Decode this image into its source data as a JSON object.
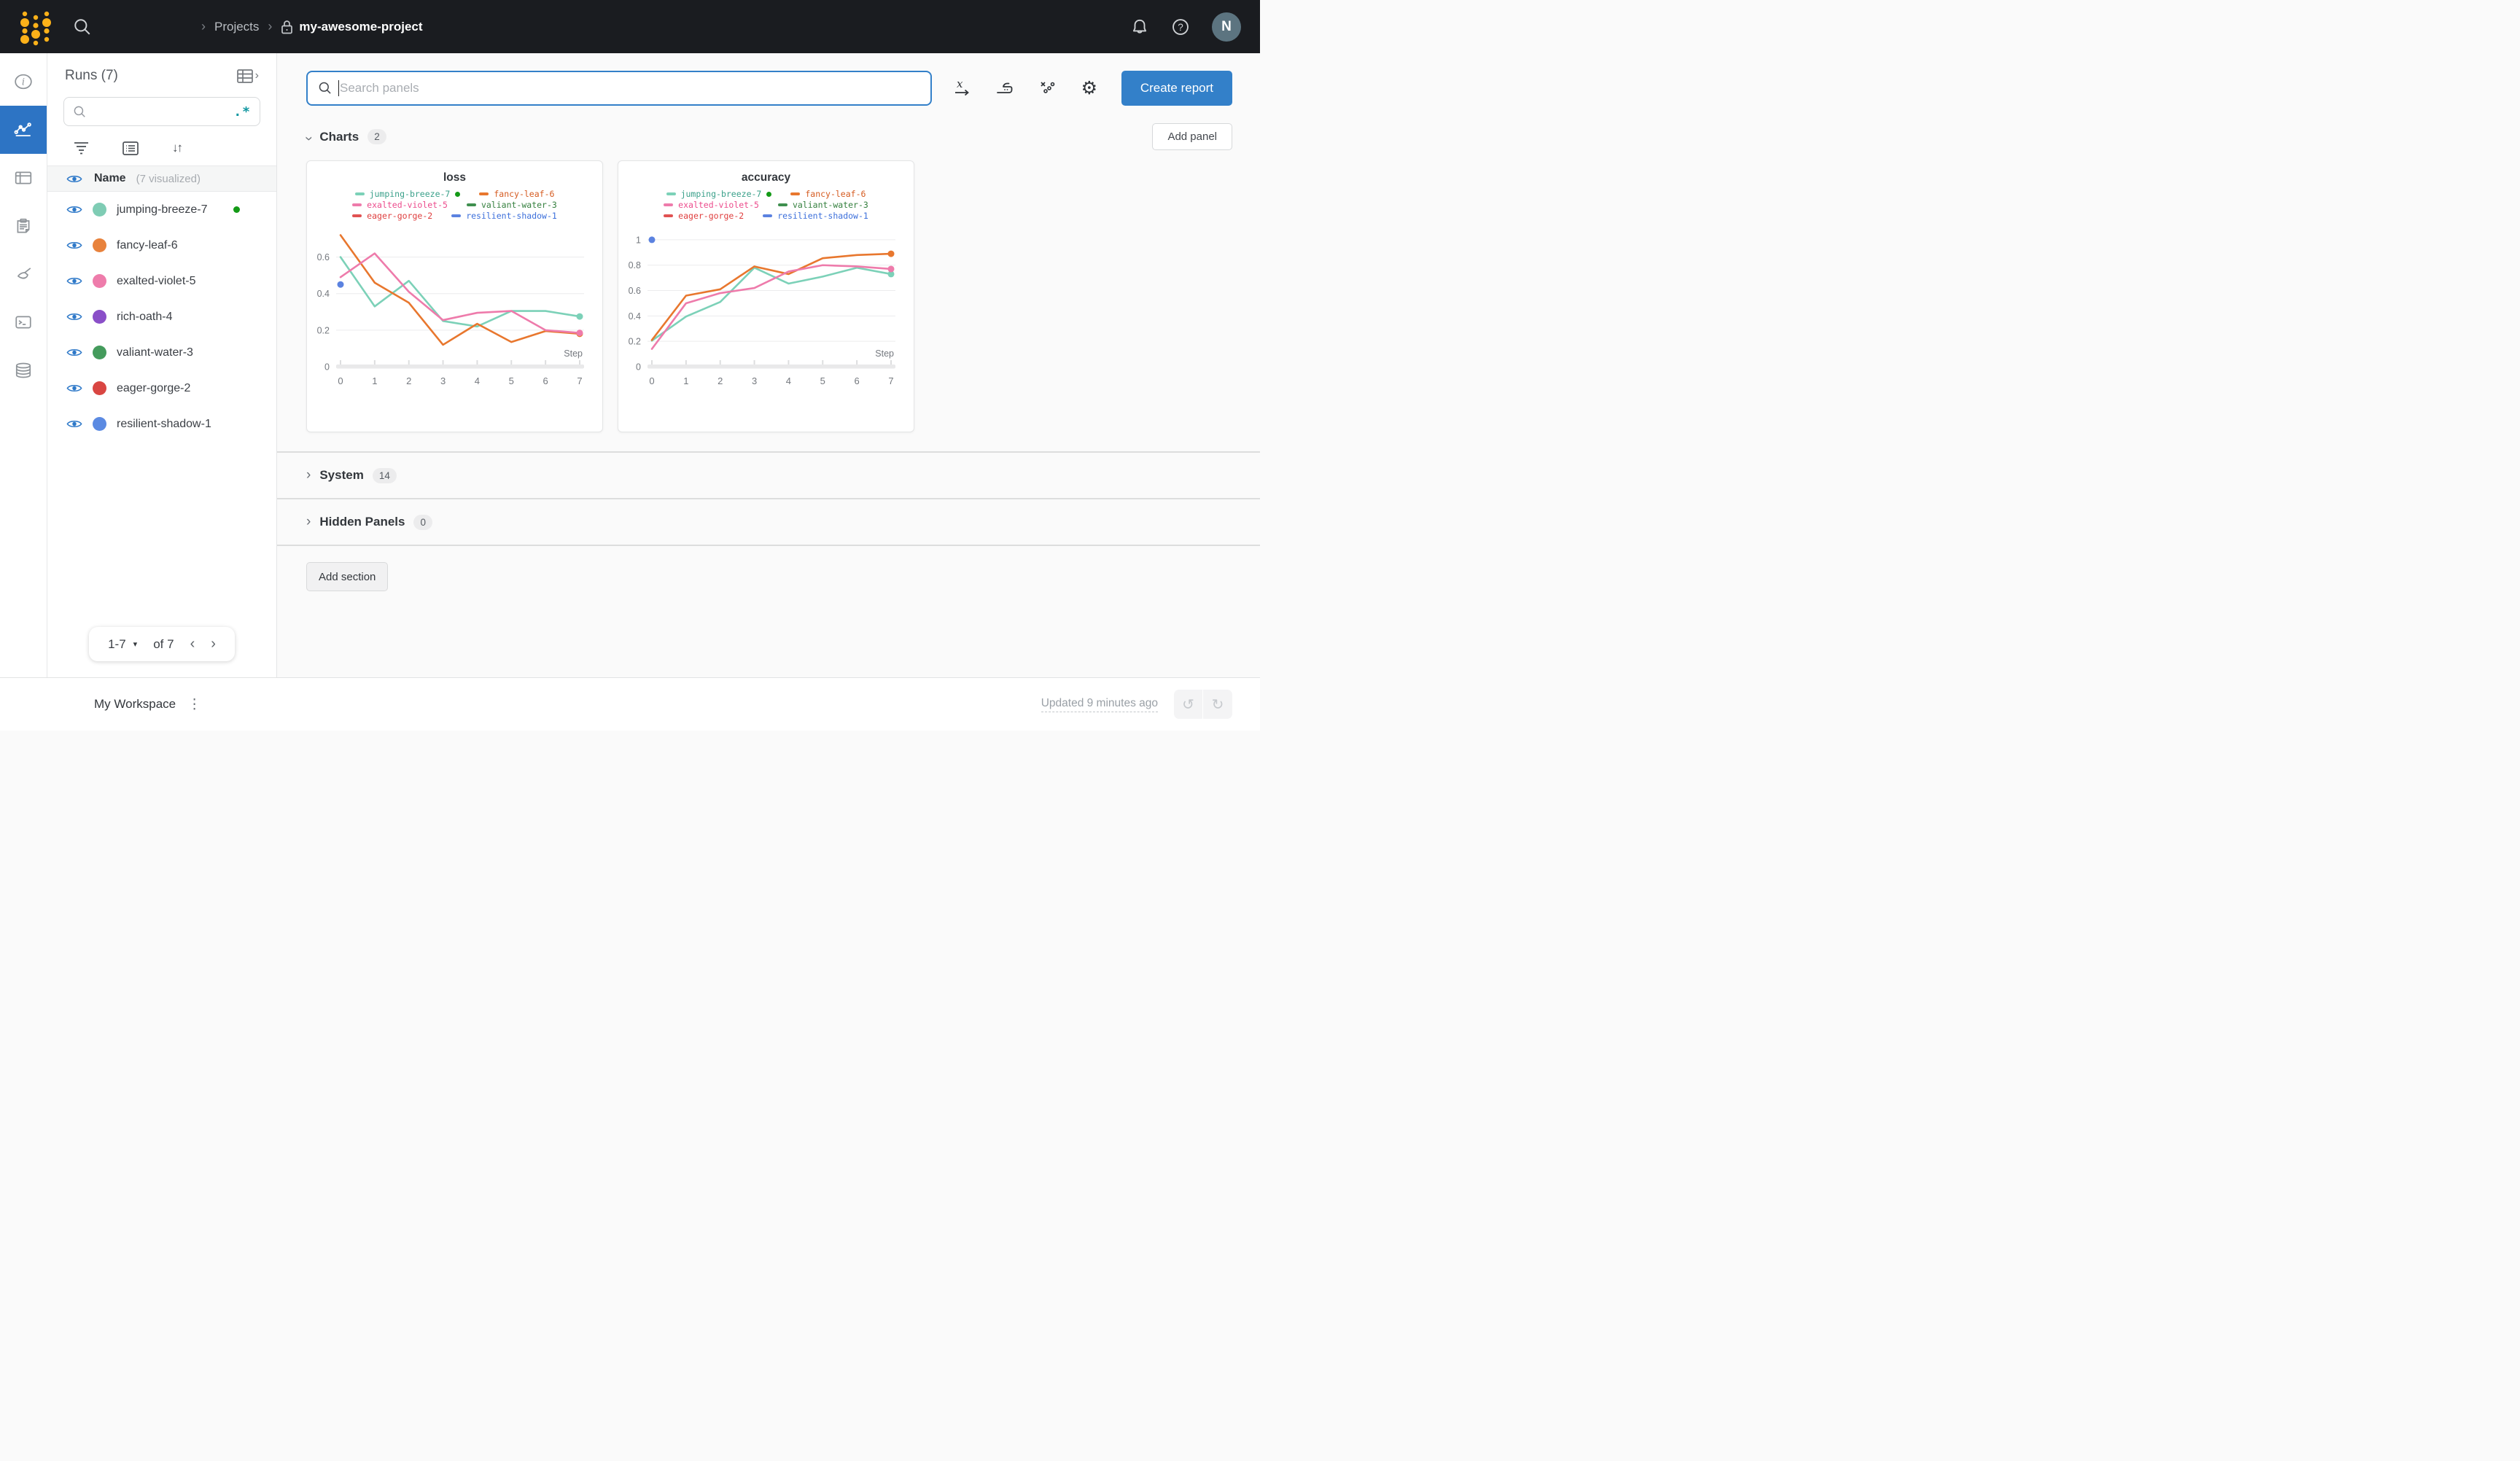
{
  "icons": {
    "chevron_right": "›",
    "chevron_left": "‹",
    "caret_down": "▾",
    "sort": "↓↑",
    "regex": ".*",
    "gear": "⚙",
    "undo": "↺",
    "redo": "↻",
    "kebab": "⋮",
    "help": "?"
  },
  "topbar": {
    "breadcrumb": {
      "section": "Projects",
      "project": "my-awesome-project"
    },
    "avatar_initial": "N"
  },
  "rail": {
    "items": [
      "info",
      "workspace-charts",
      "table",
      "reports",
      "sweeps",
      "jobs",
      "artifacts"
    ],
    "active_color": "#2d74c4"
  },
  "sidebar": {
    "title": "Runs (7)",
    "search_placeholder": "",
    "list_header": {
      "name": "Name",
      "visualized": "(7 visualized)"
    },
    "runs": [
      {
        "name": "jumping-breeze-7",
        "color": "#7fccb4",
        "running": true
      },
      {
        "name": "fancy-leaf-6",
        "color": "#e8823c",
        "running": false
      },
      {
        "name": "exalted-violet-5",
        "color": "#ee7cab",
        "running": false
      },
      {
        "name": "rich-oath-4",
        "color": "#8a4fc8",
        "running": false
      },
      {
        "name": "valiant-water-3",
        "color": "#449b5c",
        "running": false
      },
      {
        "name": "eager-gorge-2",
        "color": "#d94642",
        "running": false
      },
      {
        "name": "resilient-shadow-1",
        "color": "#5b8ae2",
        "running": false
      }
    ],
    "pagination": {
      "range": "1-7",
      "of": "of 7"
    }
  },
  "toolbar": {
    "search_placeholder": "Search panels",
    "create_report": "Create report"
  },
  "sections": {
    "charts": {
      "label": "Charts",
      "count": "2",
      "add_panel": "Add panel"
    },
    "system": {
      "label": "System",
      "count": "14"
    },
    "hidden": {
      "label": "Hidden Panels",
      "count": "0"
    },
    "add_section": "Add section"
  },
  "footer": {
    "workspace": "My Workspace",
    "updated": "Updated 9 minutes ago"
  },
  "chart_data": [
    {
      "type": "line",
      "title": "loss",
      "xlabel": "Step",
      "x": [
        0,
        1,
        2,
        3,
        4,
        5,
        6,
        7
      ],
      "ylim": [
        0,
        0.75
      ],
      "yticks": [
        0,
        0.2,
        0.4,
        0.6
      ],
      "grid": true,
      "legend_position": "top",
      "series": [
        {
          "name": "jumping-breeze-7",
          "color": "#7cd1b8",
          "text_color": "#3aa08a",
          "running": true,
          "values": [
            0.6,
            0.33,
            0.47,
            0.25,
            0.22,
            0.305,
            0.305,
            0.275
          ]
        },
        {
          "name": "fancy-leaf-6",
          "color": "#e8772e",
          "text_color": "#d55b20",
          "values": [
            0.72,
            0.46,
            0.35,
            0.12,
            0.235,
            0.135,
            0.195,
            0.18
          ]
        },
        {
          "name": "exalted-violet-5",
          "color": "#ee7bab",
          "text_color": "#ec4b8c",
          "values": [
            0.49,
            0.62,
            0.41,
            0.255,
            0.295,
            0.305,
            0.2,
            0.185
          ]
        },
        {
          "name": "valiant-water-3",
          "color": "#3f8f4f",
          "text_color": "#35803f"
        },
        {
          "name": "eager-gorge-2",
          "color": "#e05252",
          "text_color": "#df3e3e"
        },
        {
          "name": "resilient-shadow-1",
          "color": "#5b82e0",
          "text_color": "#3c6fdb",
          "point": [
            0,
            0.45
          ]
        }
      ]
    },
    {
      "type": "line",
      "title": "accuracy",
      "xlabel": "Step",
      "x": [
        0,
        1,
        2,
        3,
        4,
        5,
        6,
        7
      ],
      "ylim": [
        0,
        1.08
      ],
      "yticks": [
        0,
        0.2,
        0.4,
        0.6,
        0.8,
        1
      ],
      "grid": true,
      "legend_position": "top",
      "series": [
        {
          "name": "jumping-breeze-7",
          "color": "#7cd1b8",
          "text_color": "#3aa08a",
          "running": true,
          "values": [
            0.205,
            0.395,
            0.51,
            0.78,
            0.655,
            0.71,
            0.78,
            0.73
          ]
        },
        {
          "name": "fancy-leaf-6",
          "color": "#e8772e",
          "text_color": "#d55b20",
          "values": [
            0.21,
            0.56,
            0.61,
            0.79,
            0.73,
            0.855,
            0.88,
            0.89
          ]
        },
        {
          "name": "exalted-violet-5",
          "color": "#ee7bab",
          "text_color": "#ec4b8c",
          "values": [
            0.14,
            0.5,
            0.58,
            0.62,
            0.75,
            0.8,
            0.79,
            0.77
          ]
        },
        {
          "name": "valiant-water-3",
          "color": "#3f8f4f",
          "text_color": "#35803f"
        },
        {
          "name": "eager-gorge-2",
          "color": "#e05252",
          "text_color": "#df3e3e"
        },
        {
          "name": "resilient-shadow-1",
          "color": "#5b82e0",
          "text_color": "#3c6fdb",
          "point": [
            0,
            1.0
          ]
        }
      ]
    }
  ]
}
